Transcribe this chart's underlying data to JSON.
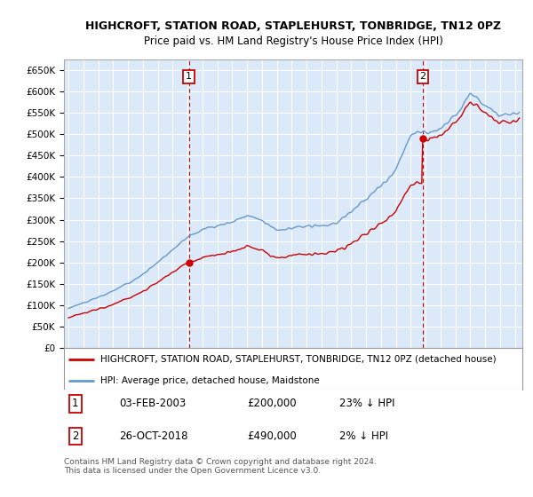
{
  "title": "HIGHCROFT, STATION ROAD, STAPLEHURST, TONBRIDGE, TN12 0PZ",
  "subtitle": "Price paid vs. HM Land Registry's House Price Index (HPI)",
  "ylabel_ticks": [
    "£0",
    "£50K",
    "£100K",
    "£150K",
    "£200K",
    "£250K",
    "£300K",
    "£350K",
    "£400K",
    "£450K",
    "£500K",
    "£550K",
    "£600K",
    "£650K"
  ],
  "ytick_values": [
    0,
    50000,
    100000,
    150000,
    200000,
    250000,
    300000,
    350000,
    400000,
    450000,
    500000,
    550000,
    600000,
    650000
  ],
  "ylim": [
    0,
    675000
  ],
  "xlim_start": 1994.7,
  "xlim_end": 2025.5,
  "plot_bg_color": "#dce9f8",
  "grid_color": "#ffffff",
  "hpi_color": "#6699cc",
  "price_color": "#cc0000",
  "dashed_line_color": "#cc0000",
  "marker1_x": 2003.09,
  "marker2_x": 2018.82,
  "legend_label1": "HIGHCROFT, STATION ROAD, STAPLEHURST, TONBRIDGE, TN12 0PZ (detached house)",
  "legend_label2": "HPI: Average price, detached house, Maidstone",
  "note1_num": "1",
  "note1_date": "03-FEB-2003",
  "note1_price": "£200,000",
  "note1_hpi": "23% ↓ HPI",
  "note2_num": "2",
  "note2_date": "26-OCT-2018",
  "note2_price": "£490,000",
  "note2_hpi": "2% ↓ HPI",
  "footer": "Contains HM Land Registry data © Crown copyright and database right 2024.\nThis data is licensed under the Open Government Licence v3.0.",
  "sale1_year": 2003.09,
  "sale1_price": 200000,
  "sale2_year": 2018.82,
  "sale2_price": 490000
}
